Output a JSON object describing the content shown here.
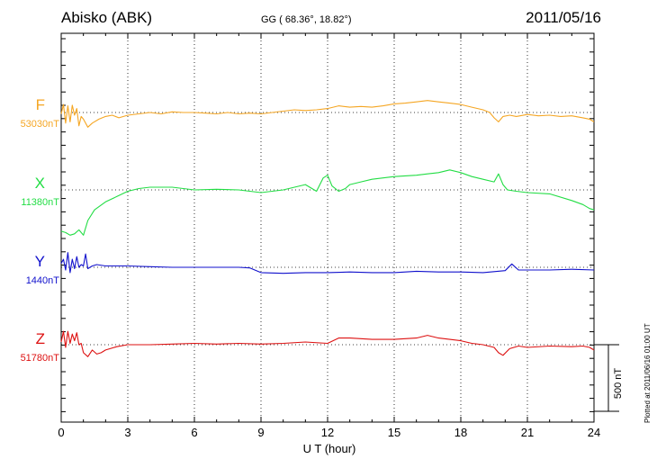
{
  "header": {
    "station": "Abisko (ABK)",
    "coords": "GG ( 68.36°,  18.82°)",
    "date": "2011/05/16"
  },
  "plotted_note": "Plotted at 2011/06/16 01:00 UT",
  "scale_bar_label": "500 nT",
  "chart_data": {
    "type": "line",
    "xlabel": "U T (hour)",
    "xlim": [
      0,
      24
    ],
    "xticks": [
      0,
      3,
      6,
      9,
      12,
      15,
      18,
      21,
      24
    ],
    "grid": true,
    "scale_bar_nT": 500,
    "series": [
      {
        "name": "F",
        "baseline_label": "53030nT",
        "baseline": 53030,
        "color": "#f5a623",
        "x": [
          0,
          0.1,
          0.2,
          0.3,
          0.4,
          0.5,
          0.6,
          0.7,
          0.8,
          0.9,
          1.0,
          1.2,
          1.4,
          1.7,
          2,
          2.3,
          2.6,
          3,
          3.5,
          4,
          4.5,
          5,
          5.5,
          6,
          6.5,
          7,
          7.5,
          8,
          8.5,
          9,
          9.5,
          10,
          10.5,
          11,
          11.5,
          12,
          12.5,
          13,
          13.5,
          14,
          14.5,
          15,
          15.5,
          16,
          16.5,
          17,
          17.5,
          18,
          18.5,
          19,
          19.3,
          19.5,
          19.7,
          19.9,
          20.2,
          20.5,
          21,
          21.5,
          22,
          22.5,
          23,
          23.5,
          23.8,
          24
        ],
        "y": [
          53020,
          53090,
          52950,
          53080,
          52960,
          53085,
          53010,
          53060,
          52930,
          53000,
          52980,
          52920,
          52950,
          52980,
          53000,
          53010,
          52990,
          53010,
          53020,
          53030,
          53020,
          53035,
          53030,
          53030,
          53025,
          53020,
          53030,
          53020,
          53025,
          53020,
          53030,
          53040,
          53050,
          53045,
          53050,
          53060,
          53080,
          53070,
          53075,
          53070,
          53080,
          53095,
          53100,
          53110,
          53120,
          53110,
          53100,
          53090,
          53070,
          53050,
          53030,
          52990,
          52960,
          53000,
          53010,
          53000,
          53015,
          53005,
          53010,
          53000,
          53005,
          52990,
          52980,
          52960
        ]
      },
      {
        "name": "X",
        "baseline_label": "11380nT",
        "baseline": 11380,
        "color": "#22dd44",
        "x": [
          0,
          0.2,
          0.4,
          0.6,
          0.8,
          1.0,
          1.2,
          1.5,
          2,
          2.5,
          3,
          3.5,
          4,
          5,
          6,
          7,
          8,
          9,
          10,
          11,
          11.5,
          11.8,
          12,
          12.2,
          12.5,
          12.8,
          13,
          13.5,
          14,
          15,
          16,
          16.5,
          17,
          17.5,
          18,
          18.5,
          19,
          19.5,
          19.7,
          19.9,
          20.1,
          20.5,
          21,
          22,
          23,
          23.5,
          23.8,
          24
        ],
        "y": [
          11070,
          11060,
          11040,
          11050,
          11080,
          11040,
          11150,
          11230,
          11290,
          11330,
          11370,
          11390,
          11400,
          11400,
          11380,
          11385,
          11380,
          11360,
          11380,
          11420,
          11370,
          11470,
          11490,
          11410,
          11370,
          11390,
          11420,
          11440,
          11460,
          11480,
          11490,
          11500,
          11510,
          11530,
          11510,
          11480,
          11460,
          11440,
          11500,
          11420,
          11380,
          11370,
          11360,
          11350,
          11300,
          11270,
          11240,
          11230
        ]
      },
      {
        "name": "Y",
        "baseline_label": "1440nT",
        "baseline": 1440,
        "color": "#1010cc",
        "x": [
          0,
          0.1,
          0.2,
          0.3,
          0.4,
          0.5,
          0.6,
          0.7,
          0.8,
          0.9,
          1.0,
          1.1,
          1.2,
          1.4,
          1.6,
          2,
          3,
          4,
          5,
          6,
          7,
          8,
          8.5,
          9,
          10,
          11,
          12,
          13,
          14,
          15,
          16,
          17,
          18,
          19,
          20,
          20.3,
          20.6,
          21,
          22,
          23,
          24
        ],
        "y": [
          1470,
          1500,
          1420,
          1550,
          1400,
          1500,
          1430,
          1520,
          1440,
          1460,
          1450,
          1540,
          1430,
          1450,
          1460,
          1450,
          1450,
          1445,
          1440,
          1440,
          1440,
          1440,
          1435,
          1400,
          1395,
          1400,
          1400,
          1405,
          1400,
          1400,
          1410,
          1405,
          1405,
          1400,
          1415,
          1465,
          1420,
          1420,
          1420,
          1425,
          1420
        ]
      },
      {
        "name": "Z",
        "baseline_label": "51780nT",
        "baseline": 51780,
        "color": "#dd1111",
        "x": [
          0,
          0.1,
          0.2,
          0.3,
          0.4,
          0.5,
          0.6,
          0.7,
          0.8,
          0.9,
          1.0,
          1.2,
          1.4,
          1.6,
          1.8,
          2,
          2.5,
          3,
          4,
          5,
          6,
          7,
          8,
          9,
          10,
          11,
          12,
          12.5,
          13,
          14,
          15,
          16,
          16.5,
          17,
          17.5,
          18,
          18.5,
          19,
          19.5,
          19.7,
          19.9,
          20.2,
          20.6,
          21,
          22,
          23,
          23.5,
          23.8,
          24
        ],
        "y": [
          51800,
          51880,
          51760,
          51880,
          51790,
          51860,
          51810,
          51870,
          51780,
          51790,
          51720,
          51690,
          51740,
          51710,
          51720,
          51740,
          51765,
          51780,
          51780,
          51785,
          51790,
          51785,
          51790,
          51785,
          51790,
          51800,
          51790,
          51830,
          51830,
          51820,
          51820,
          51830,
          51850,
          51830,
          51820,
          51810,
          51790,
          51780,
          51760,
          51720,
          51700,
          51750,
          51770,
          51760,
          51770,
          51765,
          51770,
          51760,
          51740
        ]
      }
    ]
  }
}
